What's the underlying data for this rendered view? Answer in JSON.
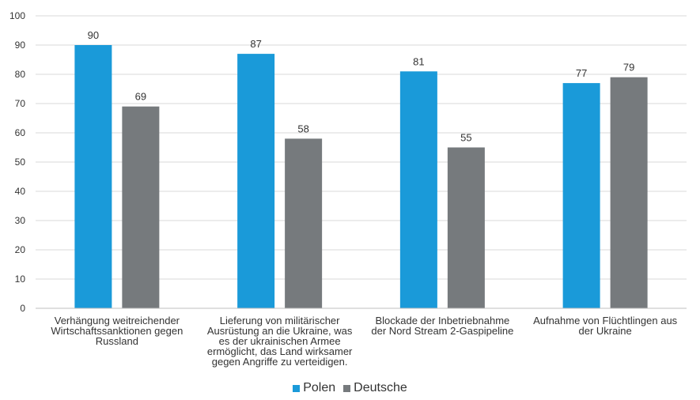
{
  "chart_data": {
    "type": "bar",
    "categories": [
      "Verhängung weitreichender Wirtschaftssanktionen gegen Russland",
      "Lieferung von militärischer Ausrüstung an die Ukraine, was es der ukrainischen Armee ermöglicht, das Land wirksamer gegen Angriffe zu verteidigen.",
      "Blockade der Inbetriebnahme der Nord Stream 2-Gaspipeline",
      "Aufnahme von Flüchtlingen aus der Ukraine"
    ],
    "category_lines": [
      [
        "Verhängung weitreichender",
        "Wirtschaftssanktionen gegen",
        "Russland"
      ],
      [
        "Lieferung von militärischer",
        "Ausrüstung an die Ukraine, was",
        "es der ukrainischen Armee",
        "ermöglicht, das Land wirksamer",
        "gegen Angriffe zu verteidigen."
      ],
      [
        "Blockade der Inbetriebnahme",
        "der Nord Stream 2-Gaspipeline"
      ],
      [
        "Aufnahme von Flüchtlingen aus",
        "der Ukraine"
      ]
    ],
    "series": [
      {
        "name": "Polen",
        "values": [
          90,
          87,
          81,
          77
        ],
        "color": "#1a9ad9"
      },
      {
        "name": "Deutsche",
        "values": [
          69,
          58,
          55,
          79
        ],
        "color": "#767a7d"
      }
    ],
    "y_ticks": [
      "0",
      "10",
      "20",
      "30",
      "40",
      "50",
      "60",
      "70",
      "80",
      "90",
      "100"
    ],
    "ylim": [
      0,
      100
    ],
    "grid": true,
    "legend_position": "bottom",
    "title": "",
    "xlabel": "",
    "ylabel": ""
  }
}
